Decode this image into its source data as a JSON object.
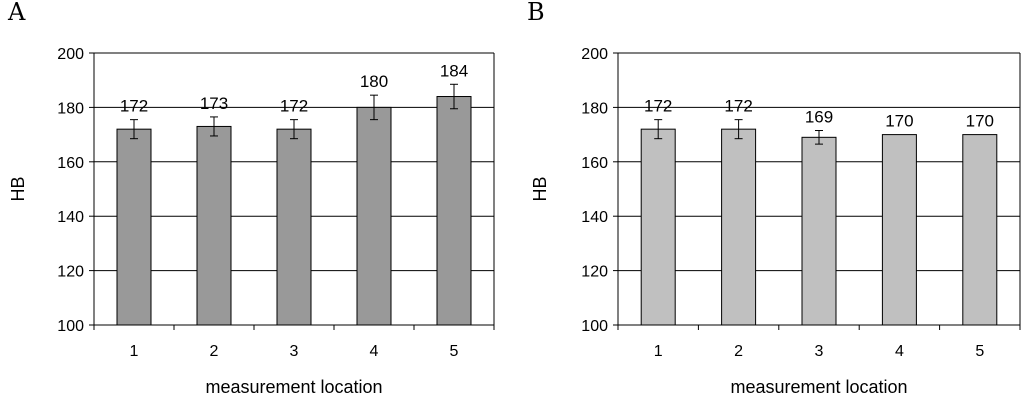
{
  "chart_data": [
    {
      "type": "bar",
      "panel_label": "A",
      "categories": [
        "1",
        "2",
        "3",
        "4",
        "5"
      ],
      "values": [
        172,
        173,
        172,
        180,
        184
      ],
      "data_labels": [
        "172",
        "173",
        "172",
        "180",
        "184"
      ],
      "error": [
        3.5,
        3.5,
        3.5,
        4.5,
        4.5
      ],
      "xlabel": "measurement location",
      "ylabel": "HB",
      "ylim": [
        100,
        200
      ],
      "yticks": [
        "100",
        "120",
        "140",
        "160",
        "180",
        "200"
      ],
      "grid": true,
      "bar_color": "#999999"
    },
    {
      "type": "bar",
      "panel_label": "B",
      "categories": [
        "1",
        "2",
        "3",
        "4",
        "5"
      ],
      "values": [
        172,
        172,
        169,
        170,
        170
      ],
      "data_labels": [
        "172",
        "172",
        "169",
        "170",
        "170"
      ],
      "error": [
        3.5,
        3.5,
        2.5,
        0,
        0
      ],
      "xlabel": "measurement location",
      "ylabel": "HB",
      "ylim": [
        100,
        200
      ],
      "yticks": [
        "100",
        "120",
        "140",
        "160",
        "180",
        "200"
      ],
      "grid": true,
      "bar_color": "#c0c0c0"
    }
  ]
}
